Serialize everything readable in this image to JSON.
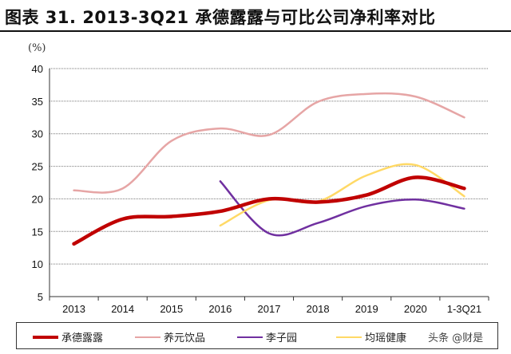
{
  "title": "图表 31. 2013-3Q21 承德露露与可比公司净利率对比",
  "chart_data": {
    "type": "line",
    "title": "图表 31. 2013-3Q21 承德露露与可比公司净利率对比",
    "ylabel": "(%)",
    "xlabel": "",
    "ylim": [
      5,
      40
    ],
    "yticks": [
      5,
      10,
      15,
      20,
      25,
      30,
      35,
      40
    ],
    "grid": true,
    "smooth": true,
    "legend_position": "bottom",
    "categories": [
      "2013",
      "2014",
      "2015",
      "2016",
      "2017",
      "2018",
      "2019",
      "2020",
      "1-3Q21"
    ],
    "series": [
      {
        "name": "承德露露",
        "color": "#c00000",
        "values": [
          13.1,
          16.9,
          17.3,
          18.1,
          20.0,
          19.5,
          20.6,
          23.3,
          21.6
        ]
      },
      {
        "name": "养元饮品",
        "color": "#e6a5a5",
        "values": [
          21.3,
          21.6,
          28.9,
          30.8,
          29.8,
          34.9,
          36.1,
          35.7,
          32.5
        ]
      },
      {
        "name": "李子园",
        "color": "#7030a0",
        "values": [
          null,
          null,
          null,
          22.7,
          14.7,
          16.3,
          18.9,
          19.9,
          18.5
        ]
      },
      {
        "name": "均瑶健康",
        "color": "#ffd966",
        "values": [
          null,
          null,
          null,
          15.9,
          19.8,
          19.6,
          23.6,
          25.2,
          20.4
        ]
      }
    ]
  },
  "watermark": "头条 @财是"
}
